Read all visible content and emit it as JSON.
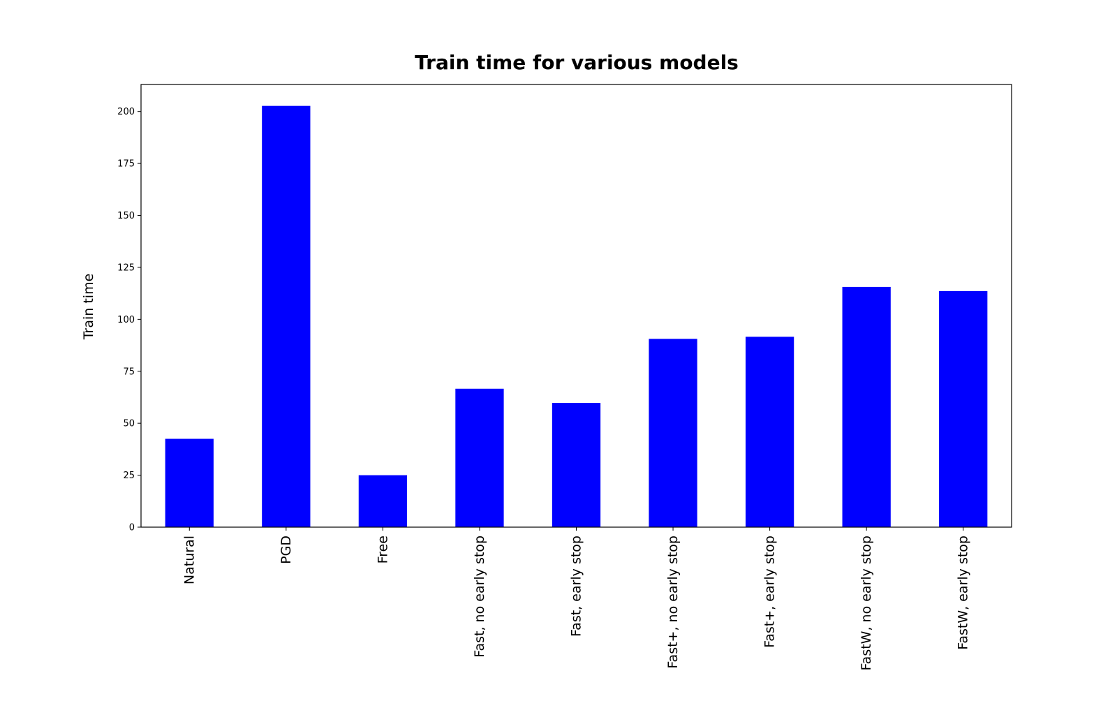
{
  "chart_data": {
    "type": "bar",
    "title": "Train time for various models",
    "xlabel": "",
    "ylabel": "Train time",
    "categories": [
      "Natural",
      "PGD",
      "Free",
      "Fast, no early stop",
      "Fast, early stop",
      "Fast+, no early stop",
      "Fast+, early stop",
      "FastW, no early stop",
      "FastW, early stop"
    ],
    "values": [
      42.5,
      202.7,
      25.0,
      66.6,
      59.8,
      90.6,
      91.6,
      115.6,
      113.6
    ],
    "ylim": [
      0,
      213
    ],
    "yticks": [
      0,
      25,
      50,
      75,
      100,
      125,
      150,
      175,
      200
    ],
    "bar_color": "#0000ff",
    "grid": false,
    "legend": "none"
  }
}
